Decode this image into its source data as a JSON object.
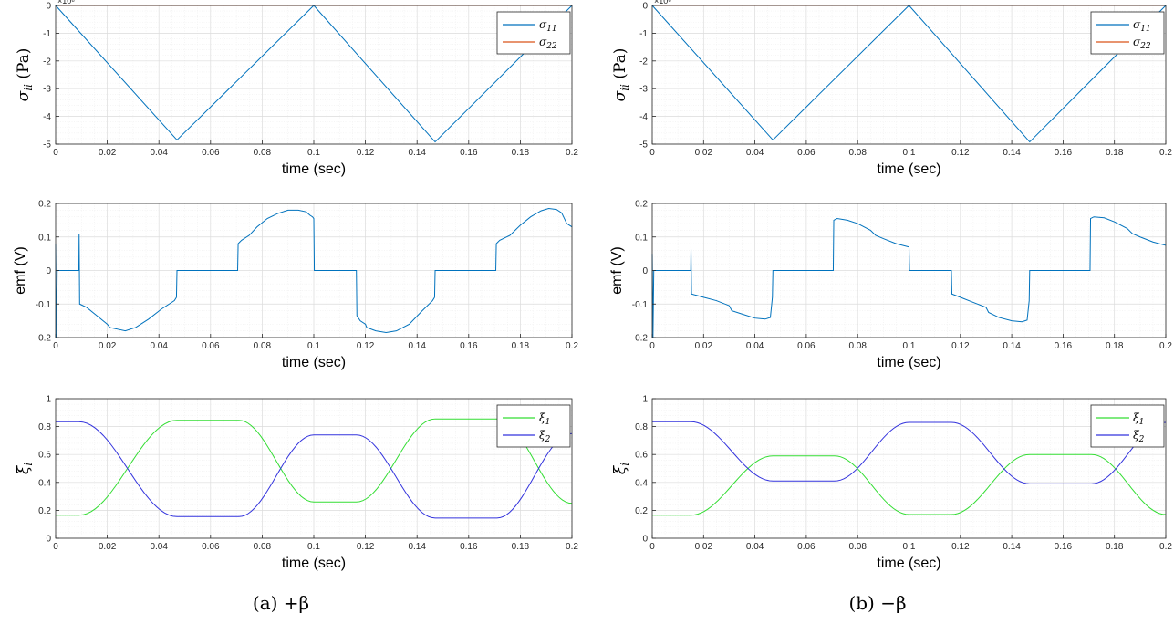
{
  "figure": {
    "captions": [
      "(a) +β",
      "(b) −β"
    ]
  },
  "colors": {
    "sigma11": "#0072BD",
    "sigma22": "#D95319",
    "emf": "#0072BD",
    "xi1": "#33DD33",
    "xi2": "#3333DD",
    "axis": "#262626",
    "grid_major": "#dcdcdc",
    "grid_minor": "#efefef"
  },
  "chart_data": [
    {
      "id": "a-stress",
      "panel": "a",
      "row": 0,
      "type": "line",
      "title": "",
      "xlabel": "time (sec)",
      "ylabel": "σ_ii (Pa)",
      "ylabel_main": "σ",
      "ylabel_sub": "ii",
      "ylabel_unit": " (Pa)",
      "exponent_label": "×10⁶",
      "xlim": [
        0,
        0.2
      ],
      "ylim": [
        -5,
        0
      ],
      "xticks": [
        0,
        0.02,
        0.04,
        0.06,
        0.08,
        0.1,
        0.12,
        0.14,
        0.16,
        0.18,
        0.2
      ],
      "xtick_labels": [
        "0",
        "0.02",
        "0.04",
        "0.06",
        "0.08",
        "0.1",
        "0.12",
        "0.14",
        "0.16",
        "0.18",
        "0.2"
      ],
      "yticks": [
        -5,
        -4,
        -3,
        -2,
        -1,
        0
      ],
      "ytick_labels": [
        "-5",
        "-4",
        "-3",
        "-2",
        "-1",
        "0"
      ],
      "legend": {
        "position": "top-right",
        "entries": [
          {
            "main": "σ",
            "sub": "11",
            "color_key": "sigma11"
          },
          {
            "main": "σ",
            "sub": "22",
            "color_key": "sigma22"
          }
        ]
      },
      "series": [
        {
          "name": "σ11",
          "color_key": "sigma11",
          "x": [
            0,
            0.047,
            0.1,
            0.147,
            0.2
          ],
          "y": [
            0,
            -4.85,
            0,
            -4.92,
            0
          ]
        },
        {
          "name": "σ22",
          "color_key": "sigma22",
          "x": [
            0,
            0.2
          ],
          "y": [
            0,
            0
          ]
        }
      ]
    },
    {
      "id": "a-emf",
      "panel": "a",
      "row": 1,
      "type": "line",
      "title": "",
      "xlabel": "time (sec)",
      "ylabel": "emf (V)",
      "xlim": [
        0,
        0.2
      ],
      "ylim": [
        -0.2,
        0.2
      ],
      "xticks": [
        0,
        0.02,
        0.04,
        0.06,
        0.08,
        0.1,
        0.12,
        0.14,
        0.16,
        0.18,
        0.2
      ],
      "xtick_labels": [
        "0",
        "0.02",
        "0.04",
        "0.06",
        "0.08",
        "0.1",
        "0.12",
        "0.14",
        "0.16",
        "0.18",
        "0.2"
      ],
      "yticks": [
        -0.2,
        -0.1,
        0,
        0.1,
        0.2
      ],
      "ytick_labels": [
        "-0.2",
        "-0.1",
        "0",
        "0.1",
        "0.2"
      ],
      "series": [
        {
          "name": "emf",
          "color_key": "emf",
          "x": [
            0,
            0.0003,
            0.0006,
            0.0009,
            0.009,
            0.0091,
            0.0093,
            0.012,
            0.016,
            0.02,
            0.021,
            0.024,
            0.027,
            0.031,
            0.036,
            0.041,
            0.046,
            0.0468,
            0.047,
            0.0705,
            0.0707,
            0.072,
            0.075,
            0.078,
            0.082,
            0.086,
            0.09,
            0.094,
            0.097,
            0.0985,
            0.0995,
            0.1,
            0.1002,
            0.1005,
            0.1165,
            0.1167,
            0.118,
            0.12,
            0.1205,
            0.124,
            0.128,
            0.132,
            0.137,
            0.142,
            0.146,
            0.1468,
            0.147,
            0.1705,
            0.1707,
            0.172,
            0.176,
            0.18,
            0.184,
            0.188,
            0.191,
            0.194,
            0.196,
            0.198,
            0.2
          ],
          "y": [
            0.08,
            -0.2,
            0,
            0,
            0,
            0.11,
            -0.1,
            -0.11,
            -0.135,
            -0.16,
            -0.17,
            -0.175,
            -0.18,
            -0.17,
            -0.145,
            -0.115,
            -0.09,
            -0.08,
            0,
            0,
            0.08,
            0.09,
            0.105,
            0.13,
            0.155,
            0.17,
            0.18,
            0.18,
            0.175,
            0.165,
            0.16,
            0.155,
            0,
            0,
            0,
            -0.135,
            -0.15,
            -0.16,
            -0.17,
            -0.18,
            -0.185,
            -0.18,
            -0.16,
            -0.12,
            -0.09,
            -0.08,
            0,
            0,
            0.08,
            0.09,
            0.105,
            0.135,
            0.16,
            0.178,
            0.185,
            0.182,
            0.172,
            0.14,
            0.13
          ]
        }
      ]
    },
    {
      "id": "a-xi",
      "panel": "a",
      "row": 2,
      "type": "line",
      "title": "",
      "xlabel": "time (sec)",
      "ylabel": "ξ_i",
      "ylabel_main": "ξ",
      "ylabel_sub": "i",
      "ylabel_unit": "",
      "xlim": [
        0,
        0.2
      ],
      "ylim": [
        0,
        1
      ],
      "xticks": [
        0,
        0.02,
        0.04,
        0.06,
        0.08,
        0.1,
        0.12,
        0.14,
        0.16,
        0.18,
        0.2
      ],
      "xtick_labels": [
        "0",
        "0.02",
        "0.04",
        "0.06",
        "0.08",
        "0.1",
        "0.12",
        "0.14",
        "0.16",
        "0.18",
        "0.2"
      ],
      "yticks": [
        0,
        0.2,
        0.4,
        0.6,
        0.8,
        1
      ],
      "ytick_labels": [
        "0",
        "0.2",
        "0.4",
        "0.6",
        "0.8",
        "1"
      ],
      "legend": {
        "position": "top-right",
        "entries": [
          {
            "main": "ξ",
            "sub": "1",
            "color_key": "xi1"
          },
          {
            "main": "ξ",
            "sub": "2",
            "color_key": "xi2"
          }
        ]
      },
      "series": [
        {
          "name": "ξ1",
          "color_key": "xi1",
          "x": [
            0,
            0.009,
            0.047,
            0.071,
            0.1,
            0.1165,
            0.147,
            0.171,
            0.2
          ],
          "y": [
            0.165,
            0.165,
            0.845,
            0.845,
            0.26,
            0.26,
            0.855,
            0.855,
            0.25
          ],
          "smooth": true
        },
        {
          "name": "ξ2",
          "color_key": "xi2",
          "x": [
            0,
            0.009,
            0.047,
            0.071,
            0.1,
            0.1165,
            0.147,
            0.171,
            0.2
          ],
          "y": [
            0.835,
            0.835,
            0.155,
            0.155,
            0.74,
            0.74,
            0.145,
            0.145,
            0.75
          ],
          "smooth": true
        }
      ]
    },
    {
      "id": "b-stress",
      "panel": "b",
      "row": 0,
      "type": "line",
      "title": "",
      "xlabel": "time (sec)",
      "ylabel": "σ_ii (Pa)",
      "ylabel_main": "σ",
      "ylabel_sub": "ii",
      "ylabel_unit": " (Pa)",
      "exponent_label": "×10⁶",
      "xlim": [
        0,
        0.2
      ],
      "ylim": [
        -5,
        0
      ],
      "xticks": [
        0,
        0.02,
        0.04,
        0.06,
        0.08,
        0.1,
        0.12,
        0.14,
        0.16,
        0.18,
        0.2
      ],
      "xtick_labels": [
        "0",
        "0.02",
        "0.04",
        "0.06",
        "0.08",
        "0.1",
        "0.12",
        "0.14",
        "0.16",
        "0.18",
        "0.2"
      ],
      "yticks": [
        -5,
        -4,
        -3,
        -2,
        -1,
        0
      ],
      "ytick_labels": [
        "-5",
        "-4",
        "-3",
        "-2",
        "-1",
        "0"
      ],
      "legend": {
        "position": "top-right",
        "entries": [
          {
            "main": "σ",
            "sub": "11",
            "color_key": "sigma11"
          },
          {
            "main": "σ",
            "sub": "22",
            "color_key": "sigma22"
          }
        ]
      },
      "series": [
        {
          "name": "σ11",
          "color_key": "sigma11",
          "x": [
            0,
            0.047,
            0.1,
            0.147,
            0.2
          ],
          "y": [
            0,
            -4.85,
            0,
            -4.92,
            0
          ]
        },
        {
          "name": "σ22",
          "color_key": "sigma22",
          "x": [
            0,
            0.2
          ],
          "y": [
            0,
            0
          ]
        }
      ]
    },
    {
      "id": "b-emf",
      "panel": "b",
      "row": 1,
      "type": "line",
      "title": "",
      "xlabel": "time (sec)",
      "ylabel": "emf (V)",
      "xlim": [
        0,
        0.2
      ],
      "ylim": [
        -0.2,
        0.2
      ],
      "xticks": [
        0,
        0.02,
        0.04,
        0.06,
        0.08,
        0.1,
        0.12,
        0.14,
        0.16,
        0.18,
        0.2
      ],
      "xtick_labels": [
        "0",
        "0.02",
        "0.04",
        "0.06",
        "0.08",
        "0.1",
        "0.12",
        "0.14",
        "0.16",
        "0.18",
        "0.2"
      ],
      "yticks": [
        -0.2,
        -0.1,
        0,
        0.1,
        0.2
      ],
      "ytick_labels": [
        "-0.2",
        "-0.1",
        "0",
        "0.1",
        "0.2"
      ],
      "series": [
        {
          "name": "emf",
          "color_key": "emf",
          "x": [
            0,
            0.0003,
            0.0006,
            0.0009,
            0.015,
            0.0151,
            0.0153,
            0.02,
            0.025,
            0.03,
            0.031,
            0.035,
            0.04,
            0.044,
            0.046,
            0.0468,
            0.047,
            0.0705,
            0.0707,
            0.072,
            0.076,
            0.08,
            0.085,
            0.087,
            0.09,
            0.095,
            0.1,
            0.1002,
            0.1005,
            0.1165,
            0.1167,
            0.12,
            0.125,
            0.13,
            0.131,
            0.135,
            0.14,
            0.144,
            0.146,
            0.1468,
            0.147,
            0.1705,
            0.1707,
            0.172,
            0.176,
            0.18,
            0.185,
            0.187,
            0.19,
            0.195,
            0.2
          ],
          "y": [
            0.05,
            -0.2,
            0,
            0,
            0,
            0.065,
            -0.07,
            -0.08,
            -0.09,
            -0.105,
            -0.12,
            -0.13,
            -0.142,
            -0.145,
            -0.14,
            -0.08,
            0,
            0,
            0.15,
            0.155,
            0.15,
            0.14,
            0.12,
            0.105,
            0.095,
            0.08,
            0.07,
            0,
            0,
            0,
            -0.07,
            -0.08,
            -0.095,
            -0.11,
            -0.125,
            -0.14,
            -0.15,
            -0.153,
            -0.148,
            -0.09,
            0,
            0,
            0.155,
            0.16,
            0.157,
            0.145,
            0.125,
            0.11,
            0.1,
            0.085,
            0.075
          ]
        }
      ]
    },
    {
      "id": "b-xi",
      "panel": "b",
      "row": 2,
      "type": "line",
      "title": "",
      "xlabel": "time (sec)",
      "ylabel": "ξ_i",
      "ylabel_main": "ξ",
      "ylabel_sub": "i",
      "ylabel_unit": "",
      "xlim": [
        0,
        0.2
      ],
      "ylim": [
        0,
        1
      ],
      "xticks": [
        0,
        0.02,
        0.04,
        0.06,
        0.08,
        0.1,
        0.12,
        0.14,
        0.16,
        0.18,
        0.2
      ],
      "xtick_labels": [
        "0",
        "0.02",
        "0.04",
        "0.06",
        "0.08",
        "0.1",
        "0.12",
        "0.14",
        "0.16",
        "0.18",
        "0.2"
      ],
      "yticks": [
        0,
        0.2,
        0.4,
        0.6,
        0.8,
        1
      ],
      "ytick_labels": [
        "0",
        "0.2",
        "0.4",
        "0.6",
        "0.8",
        "1"
      ],
      "legend": {
        "position": "top-right",
        "entries": [
          {
            "main": "ξ",
            "sub": "1",
            "color_key": "xi1"
          },
          {
            "main": "ξ",
            "sub": "2",
            "color_key": "xi2"
          }
        ]
      },
      "series": [
        {
          "name": "ξ1",
          "color_key": "xi1",
          "x": [
            0,
            0.015,
            0.047,
            0.071,
            0.1,
            0.1165,
            0.147,
            0.171,
            0.2
          ],
          "y": [
            0.165,
            0.165,
            0.59,
            0.59,
            0.17,
            0.17,
            0.6,
            0.6,
            0.17
          ],
          "smooth": true
        },
        {
          "name": "ξ2",
          "color_key": "xi2",
          "x": [
            0,
            0.015,
            0.047,
            0.071,
            0.1,
            0.1165,
            0.147,
            0.171,
            0.2
          ],
          "y": [
            0.835,
            0.835,
            0.41,
            0.41,
            0.83,
            0.83,
            0.39,
            0.39,
            0.83
          ],
          "smooth": true
        }
      ]
    }
  ]
}
